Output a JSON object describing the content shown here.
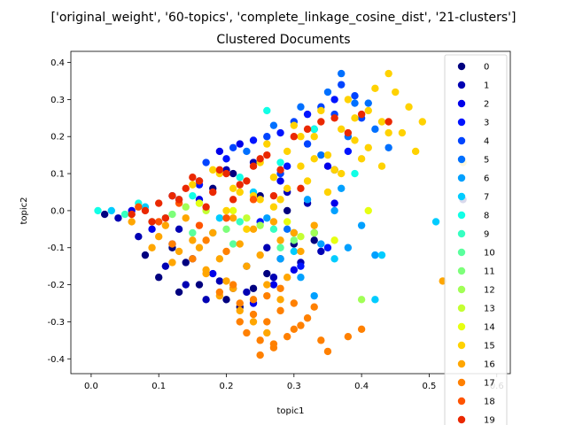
{
  "chart_data": {
    "type": "scatter",
    "suptitle": "['original_weight', '60-topics', 'complete_linkage_cosine_dist', '21-clusters']",
    "title": "Clustered Documents",
    "xlabel": "topic1",
    "ylabel": "topic2",
    "xlim": [
      -0.03,
      0.62
    ],
    "ylim": [
      -0.44,
      0.43
    ],
    "xticks": [
      "0.0",
      "0.1",
      "0.2",
      "0.3",
      "0.4",
      "0.5",
      "0.6"
    ],
    "yticks": [
      "-0.4",
      "-0.3",
      "-0.2",
      "-0.1",
      "0.0",
      "0.1",
      "0.2",
      "0.3",
      "0.4"
    ],
    "grid": false,
    "legend_position": "right",
    "legend": [
      {
        "label": "0",
        "color": "#00007f"
      },
      {
        "label": "1",
        "color": "#0000b3"
      },
      {
        "label": "2",
        "color": "#0000ea"
      },
      {
        "label": "3",
        "color": "#0014ff"
      },
      {
        "label": "4",
        "color": "#0044ff"
      },
      {
        "label": "5",
        "color": "#0070ff"
      },
      {
        "label": "6",
        "color": "#00a0ff"
      },
      {
        "label": "7",
        "color": "#00ccff"
      },
      {
        "label": "8",
        "color": "#11ffe6"
      },
      {
        "label": "9",
        "color": "#36ffc1"
      },
      {
        "label": "10",
        "color": "#5aff9d"
      },
      {
        "label": "11",
        "color": "#7dff7a"
      },
      {
        "label": "12",
        "color": "#a1ff56"
      },
      {
        "label": "13",
        "color": "#c4ff33"
      },
      {
        "label": "14",
        "color": "#e6ff11"
      },
      {
        "label": "15",
        "color": "#ffd200"
      },
      {
        "label": "16",
        "color": "#ffa600"
      },
      {
        "label": "17",
        "color": "#ff8000"
      },
      {
        "label": "18",
        "color": "#ff5400"
      },
      {
        "label": "19",
        "color": "#ea2800"
      }
    ],
    "series": [
      {
        "cluster": "0",
        "color": "#00007f",
        "x": [
          0.02,
          0.08,
          0.1,
          0.13,
          0.16,
          0.2,
          0.22,
          0.24,
          0.26,
          0.28,
          0.3,
          0.33,
          0.18,
          0.21,
          0.25,
          0.14,
          0.12,
          0.29,
          0.55,
          0.36
        ],
        "y": [
          -0.01,
          -0.12,
          -0.18,
          -0.22,
          -0.2,
          -0.24,
          -0.26,
          -0.21,
          -0.17,
          -0.13,
          -0.09,
          -0.08,
          0.06,
          0.1,
          0.04,
          -0.14,
          -0.1,
          0.0,
          0.03,
          0.11
        ]
      },
      {
        "cluster": "1",
        "color": "#0000b3",
        "x": [
          0.04,
          0.07,
          0.11,
          0.14,
          0.17,
          0.19,
          0.23,
          0.27,
          0.31,
          0.34,
          0.2,
          0.24,
          0.16,
          0.13,
          0.29,
          0.32,
          0.26
        ],
        "y": [
          -0.02,
          -0.07,
          -0.15,
          -0.2,
          -0.24,
          -0.19,
          -0.22,
          -0.18,
          -0.14,
          -0.11,
          0.11,
          0.13,
          0.08,
          -0.05,
          0.05,
          0.02,
          -0.1
        ]
      },
      {
        "cluster": "2",
        "color": "#0000ea",
        "x": [
          0.06,
          0.09,
          0.12,
          0.15,
          0.18,
          0.21,
          0.24,
          0.27,
          0.3,
          0.33,
          0.36,
          0.19,
          0.22,
          0.28,
          0.35,
          0.16
        ],
        "y": [
          0.0,
          -0.05,
          -0.09,
          -0.13,
          -0.17,
          -0.21,
          -0.25,
          -0.2,
          -0.16,
          -0.06,
          0.02,
          0.16,
          0.18,
          0.08,
          0.12,
          0.03
        ]
      },
      {
        "cluster": "3",
        "color": "#0014ff",
        "x": [
          0.12,
          0.16,
          0.2,
          0.24,
          0.28,
          0.32,
          0.36,
          0.33,
          0.29,
          0.25,
          0.38,
          0.35,
          0.31
        ],
        "y": [
          0.04,
          0.07,
          0.14,
          0.19,
          0.21,
          0.26,
          0.3,
          0.22,
          0.12,
          -0.03,
          0.16,
          -0.1,
          -0.15
        ]
      },
      {
        "cluster": "4",
        "color": "#0044ff",
        "x": [
          0.17,
          0.21,
          0.26,
          0.3,
          0.34,
          0.37,
          0.39,
          0.36,
          0.32,
          0.28,
          0.4,
          0.23
        ],
        "y": [
          0.13,
          0.17,
          0.2,
          0.24,
          0.28,
          0.34,
          0.31,
          0.26,
          0.18,
          0.1,
          0.25,
          -0.15
        ]
      },
      {
        "cluster": "5",
        "color": "#0070ff",
        "x": [
          0.23,
          0.27,
          0.31,
          0.35,
          0.37,
          0.39,
          0.42,
          0.44,
          0.38,
          0.34,
          0.29,
          0.41
        ],
        "y": [
          0.16,
          0.23,
          0.28,
          0.32,
          0.37,
          0.29,
          0.22,
          0.17,
          0.2,
          0.15,
          -0.05,
          0.29
        ]
      },
      {
        "cluster": "6",
        "color": "#00a0ff",
        "x": [
          0.26,
          0.3,
          0.34,
          0.38,
          0.4,
          0.36,
          0.32,
          0.28,
          0.42,
          0.31,
          0.37,
          0.33
        ],
        "y": [
          -0.02,
          -0.06,
          -0.09,
          -0.1,
          -0.04,
          0.0,
          0.03,
          -0.13,
          -0.12,
          -0.18,
          0.06,
          -0.23
        ]
      },
      {
        "cluster": "7",
        "color": "#00ccff",
        "x": [
          0.03,
          0.08,
          0.13,
          0.19,
          0.24,
          0.3,
          0.36,
          0.42,
          0.51,
          0.43
        ],
        "y": [
          0.0,
          0.01,
          0.03,
          -0.02,
          0.05,
          -0.11,
          -0.13,
          -0.24,
          -0.03,
          -0.12
        ]
      },
      {
        "cluster": "8",
        "color": "#11ffe6",
        "x": [
          0.01,
          0.07,
          0.15,
          0.22,
          0.26,
          0.28,
          0.18,
          0.33,
          0.39
        ],
        "y": [
          0.0,
          0.02,
          0.04,
          0.09,
          0.27,
          0.13,
          -0.06,
          0.22,
          0.1
        ]
      },
      {
        "cluster": "9",
        "color": "#36ffc1",
        "x": [
          0.05,
          0.11,
          0.16,
          0.22,
          0.27,
          0.33
        ],
        "y": [
          -0.01,
          -0.02,
          0.02,
          -0.03,
          -0.05,
          -0.06
        ]
      },
      {
        "cluster": "10",
        "color": "#5aff9d",
        "x": [
          0.09,
          0.15,
          0.21,
          0.28
        ],
        "y": [
          -0.03,
          -0.06,
          -0.09,
          -0.1
        ]
      },
      {
        "cluster": "11",
        "color": "#7dff7a",
        "x": [
          0.12,
          0.2,
          0.3
        ],
        "y": [
          -0.01,
          -0.05,
          -0.08
        ]
      },
      {
        "cluster": "12",
        "color": "#a1ff56",
        "x": [
          0.14,
          0.25,
          0.33,
          0.4
        ],
        "y": [
          0.01,
          -0.04,
          -0.06,
          -0.24
        ]
      },
      {
        "cluster": "13",
        "color": "#c4ff33",
        "x": [
          0.17,
          0.23,
          0.31
        ],
        "y": [
          0.0,
          -0.02,
          -0.07
        ]
      },
      {
        "cluster": "14",
        "color": "#e6ff11",
        "x": [
          0.16,
          0.21,
          0.29,
          0.41,
          0.36
        ],
        "y": [
          0.02,
          0.0,
          -0.03,
          0.0,
          -0.08
        ]
      },
      {
        "cluster": "15",
        "color": "#ffd200",
        "x": [
          0.15,
          0.19,
          0.22,
          0.25,
          0.27,
          0.29,
          0.31,
          0.33,
          0.35,
          0.37,
          0.39,
          0.41,
          0.43,
          0.45,
          0.47,
          0.2,
          0.24,
          0.28,
          0.32,
          0.36,
          0.4,
          0.44,
          0.48,
          0.23,
          0.26,
          0.3,
          0.34,
          0.38,
          0.42,
          0.46,
          0.18,
          0.21,
          0.27,
          0.33,
          0.39,
          0.44,
          0.31,
          0.35,
          0.55,
          0.49,
          0.43,
          0.37,
          0.29,
          0.25,
          0.41
        ],
        "y": [
          0.07,
          0.1,
          0.05,
          0.13,
          0.09,
          0.16,
          0.12,
          0.2,
          0.15,
          0.22,
          0.19,
          0.27,
          0.24,
          0.32,
          0.28,
          0.0,
          0.04,
          0.03,
          0.08,
          0.11,
          0.14,
          0.21,
          0.16,
          -0.05,
          0.18,
          0.23,
          0.27,
          0.3,
          0.33,
          0.21,
          0.11,
          0.06,
          0.01,
          0.14,
          0.25,
          0.37,
          0.2,
          0.05,
          0.13,
          0.24,
          0.12,
          0.1,
          0.06,
          0.03,
          0.17
        ]
      },
      {
        "cluster": "16",
        "color": "#ffa600",
        "x": [
          0.06,
          0.1,
          0.13,
          0.16,
          0.19,
          0.22,
          0.25,
          0.28,
          0.31,
          0.11,
          0.14,
          0.18,
          0.21,
          0.24,
          0.27,
          0.3,
          0.33,
          0.17,
          0.2,
          0.23,
          0.26,
          0.29,
          0.15,
          0.09,
          0.12,
          0.19,
          0.22,
          0.52,
          0.28,
          0.24,
          0.21,
          0.17,
          0.26
        ],
        "y": [
          -0.03,
          -0.07,
          -0.11,
          -0.1,
          -0.13,
          -0.09,
          -0.12,
          -0.08,
          -0.11,
          -0.04,
          -0.02,
          -0.06,
          -0.02,
          -0.05,
          -0.03,
          -0.06,
          -0.04,
          -0.16,
          -0.19,
          -0.15,
          -0.2,
          -0.18,
          -0.08,
          -0.1,
          -0.14,
          -0.23,
          -0.27,
          -0.19,
          -0.24,
          -0.3,
          -0.21,
          -0.17,
          -0.33
        ]
      },
      {
        "cluster": "17",
        "color": "#ff8000",
        "x": [
          0.19,
          0.22,
          0.24,
          0.26,
          0.28,
          0.3,
          0.32,
          0.34,
          0.21,
          0.23,
          0.25,
          0.27,
          0.29,
          0.31,
          0.33,
          0.24,
          0.26,
          0.28,
          0.3,
          0.35,
          0.38,
          0.4,
          0.22,
          0.25,
          0.27,
          0.12,
          0.15,
          0.17,
          0.2
        ],
        "y": [
          -0.22,
          -0.25,
          -0.28,
          -0.3,
          -0.27,
          -0.32,
          -0.29,
          -0.35,
          -0.2,
          -0.33,
          -0.35,
          -0.36,
          -0.34,
          -0.31,
          -0.26,
          -0.24,
          -0.23,
          -0.21,
          -0.25,
          -0.38,
          -0.34,
          -0.32,
          -0.3,
          -0.39,
          -0.37,
          -0.09,
          -0.13,
          -0.08,
          -0.11
        ]
      },
      {
        "cluster": "18",
        "color": "#ff5400",
        "x": [
          0.07,
          0.1,
          0.13,
          0.16,
          0.2,
          0.24
        ],
        "y": [
          0.01,
          -0.03,
          0.02,
          -0.04,
          -0.02,
          0.03
        ]
      },
      {
        "cluster": "19",
        "color": "#ea2800",
        "x": [
          0.06,
          0.08,
          0.1,
          0.12,
          0.14,
          0.16,
          0.18,
          0.2,
          0.22,
          0.24,
          0.26,
          0.28,
          0.3,
          0.32,
          0.34,
          0.36,
          0.38,
          0.4,
          0.44,
          0.11,
          0.13,
          0.15,
          0.17,
          0.19,
          0.21,
          0.23,
          0.25,
          0.27,
          0.09,
          0.31
        ],
        "y": [
          -0.01,
          0.0,
          0.02,
          0.04,
          0.06,
          0.08,
          0.05,
          0.1,
          0.07,
          0.12,
          0.15,
          0.11,
          0.2,
          0.22,
          0.24,
          0.25,
          0.21,
          0.26,
          0.24,
          -0.02,
          0.03,
          0.09,
          0.01,
          0.11,
          0.03,
          0.08,
          0.14,
          0.04,
          -0.03,
          0.06
        ]
      }
    ]
  }
}
